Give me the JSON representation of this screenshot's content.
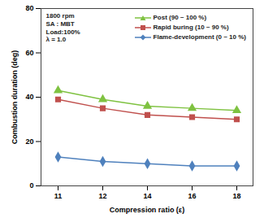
{
  "chart_data": {
    "type": "line",
    "x_label": "Compression ratio (ε)",
    "y_label": "Combustion duration (deg)",
    "annotations": [
      "1800 rpm",
      "SA : MBT",
      "Load:100%",
      "λ = 1.0"
    ],
    "categories": [
      11,
      12,
      14,
      16,
      18
    ],
    "series": [
      {
        "name": "Post (90 ~ 100 %)",
        "color": "#7fc241",
        "marker": "triangle",
        "values": [
          43,
          39,
          36,
          35,
          34
        ]
      },
      {
        "name": "Rapid buring (10 ~ 90 %)",
        "color": "#c0504d",
        "marker": "square",
        "values": [
          39,
          35,
          32,
          31,
          30
        ]
      },
      {
        "name": "Flame-development (0 ~ 10 %)",
        "color": "#4f81bd",
        "marker": "diamond",
        "values": [
          13,
          11,
          10,
          9,
          9
        ]
      }
    ],
    "ylim": [
      0,
      80
    ],
    "yticks": [
      0,
      20,
      40,
      60,
      80
    ],
    "grid": false,
    "legend": "top-right"
  }
}
